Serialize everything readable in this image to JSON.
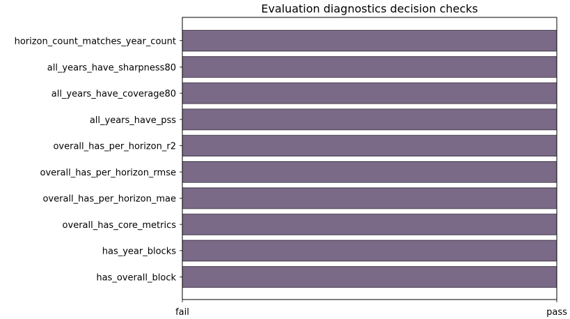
{
  "chart_data": {
    "type": "bar",
    "orientation": "horizontal",
    "title": "Evaluation diagnostics decision checks",
    "xlabel": "",
    "ylabel": "",
    "categories": [
      "has_overall_block",
      "has_year_blocks",
      "overall_has_core_metrics",
      "overall_has_per_horizon_mae",
      "overall_has_per_horizon_rmse",
      "overall_has_per_horizon_r2",
      "all_years_have_pss",
      "all_years_have_coverage80",
      "all_years_have_sharpness80",
      "horizon_count_matches_year_count"
    ],
    "values": [
      1,
      1,
      1,
      1,
      1,
      1,
      1,
      1,
      1,
      1
    ],
    "xlim": [
      0,
      1
    ],
    "x_ticks": [
      {
        "value": 0,
        "label": "fail"
      },
      {
        "value": 1,
        "label": "pass"
      }
    ],
    "bar_color": "#7b6a87",
    "edge_color": "#2e2838",
    "grid": false,
    "legend": "none"
  }
}
